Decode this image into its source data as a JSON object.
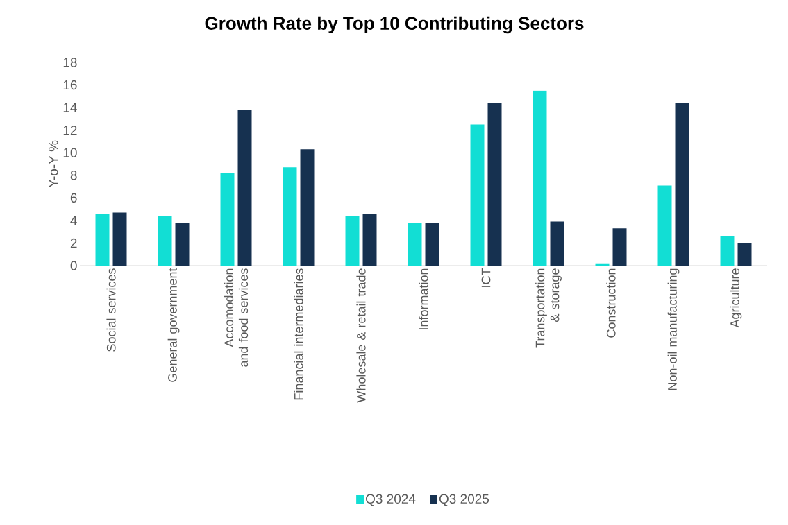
{
  "chart_data": {
    "type": "bar",
    "title": "Growth Rate by Top 10 Contributing Sectors",
    "ylabel": "Y-o-Y %",
    "categories": [
      "Social services",
      "General government",
      "Accomodation and food services",
      "Financial intermediaries",
      "Wholesale & retail trade",
      "Information",
      "ICT",
      "Transportation & storage",
      "Construction",
      "Non-oil manufacturing",
      "Agriculture"
    ],
    "series": [
      {
        "name": "Q3 2024",
        "color": "#12ded4",
        "values": [
          4.6,
          4.4,
          8.2,
          8.7,
          4.4,
          3.8,
          12.5,
          15.5,
          0.2,
          7.1,
          2.6
        ]
      },
      {
        "name": "Q3 2025",
        "color": "#163150",
        "values": [
          4.7,
          3.8,
          13.8,
          10.3,
          4.6,
          3.8,
          14.4,
          3.9,
          3.3,
          14.4,
          2.0
        ]
      }
    ],
    "ylim": [
      0,
      18
    ],
    "yticks": [
      0,
      2,
      4,
      6,
      8,
      10,
      12,
      14,
      16,
      18
    ],
    "grid": false,
    "legend": "bottom"
  }
}
